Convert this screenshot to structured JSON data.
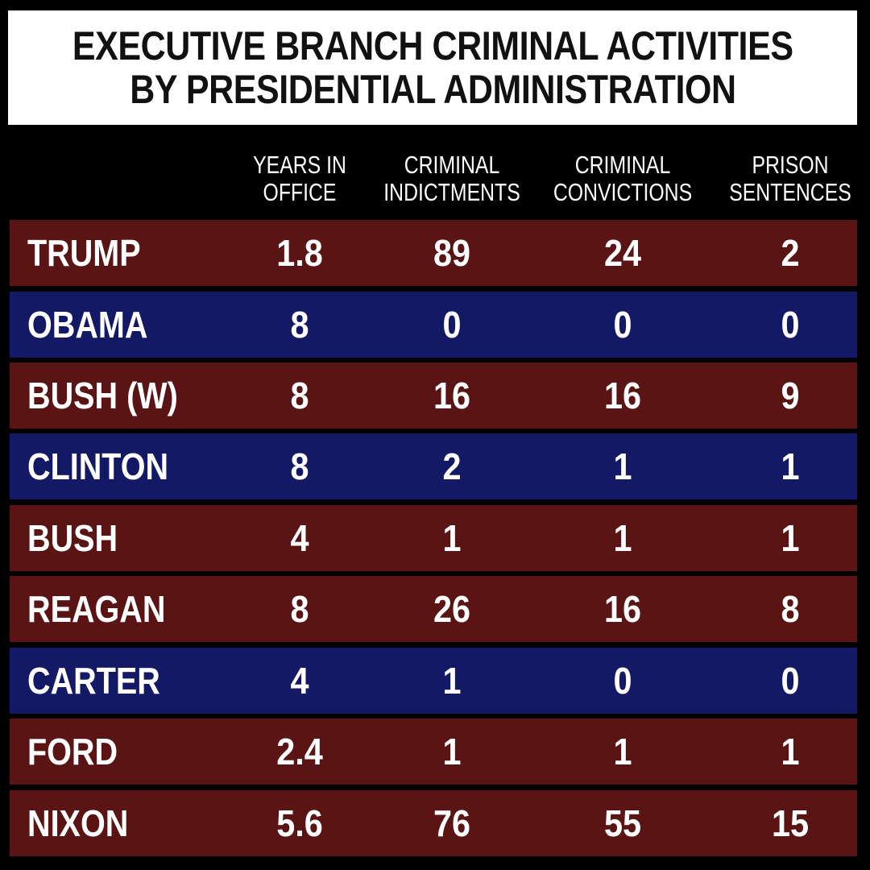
{
  "chart_data": {
    "type": "table",
    "title_lines": [
      "EXECUTIVE BRANCH CRIMINAL ACTIVITIES",
      "BY PRESIDENTIAL ADMINISTRATION"
    ],
    "columns": [
      {
        "lines": [
          "YEARS IN",
          "OFFICE"
        ]
      },
      {
        "lines": [
          "CRIMINAL",
          "INDICTMENTS"
        ]
      },
      {
        "lines": [
          "CRIMINAL",
          "CONVICTIONS"
        ]
      },
      {
        "lines": [
          "PRISON",
          "SENTENCES"
        ]
      }
    ],
    "rows": [
      {
        "name": "TRUMP",
        "values": [
          "1.8",
          "89",
          "24",
          "2"
        ],
        "color": "#5a1414"
      },
      {
        "name": "OBAMA",
        "values": [
          "8",
          "0",
          "0",
          "0"
        ],
        "color": "#141966"
      },
      {
        "name": "BUSH (W)",
        "values": [
          "8",
          "16",
          "16",
          "9"
        ],
        "color": "#5a1414"
      },
      {
        "name": "CLINTON",
        "values": [
          "8",
          "2",
          "1",
          "1"
        ],
        "color": "#141966"
      },
      {
        "name": "BUSH",
        "values": [
          "4",
          "1",
          "1",
          "1"
        ],
        "color": "#5a1414"
      },
      {
        "name": "REAGAN",
        "values": [
          "8",
          "26",
          "16",
          "8"
        ],
        "color": "#5a1414"
      },
      {
        "name": "CARTER",
        "values": [
          "4",
          "1",
          "0",
          "0"
        ],
        "color": "#141966"
      },
      {
        "name": "FORD",
        "values": [
          "2.4",
          "1",
          "1",
          "1"
        ],
        "color": "#5a1414"
      },
      {
        "name": "NIXON",
        "values": [
          "5.6",
          "76",
          "55",
          "15"
        ],
        "color": "#5a1414"
      }
    ]
  },
  "colors": {
    "background": "#000000",
    "title_background": "#ffffff",
    "title_text": "#111111",
    "text": "#ffffff",
    "republican_row": "#5a1414",
    "democrat_row": "#141966"
  }
}
